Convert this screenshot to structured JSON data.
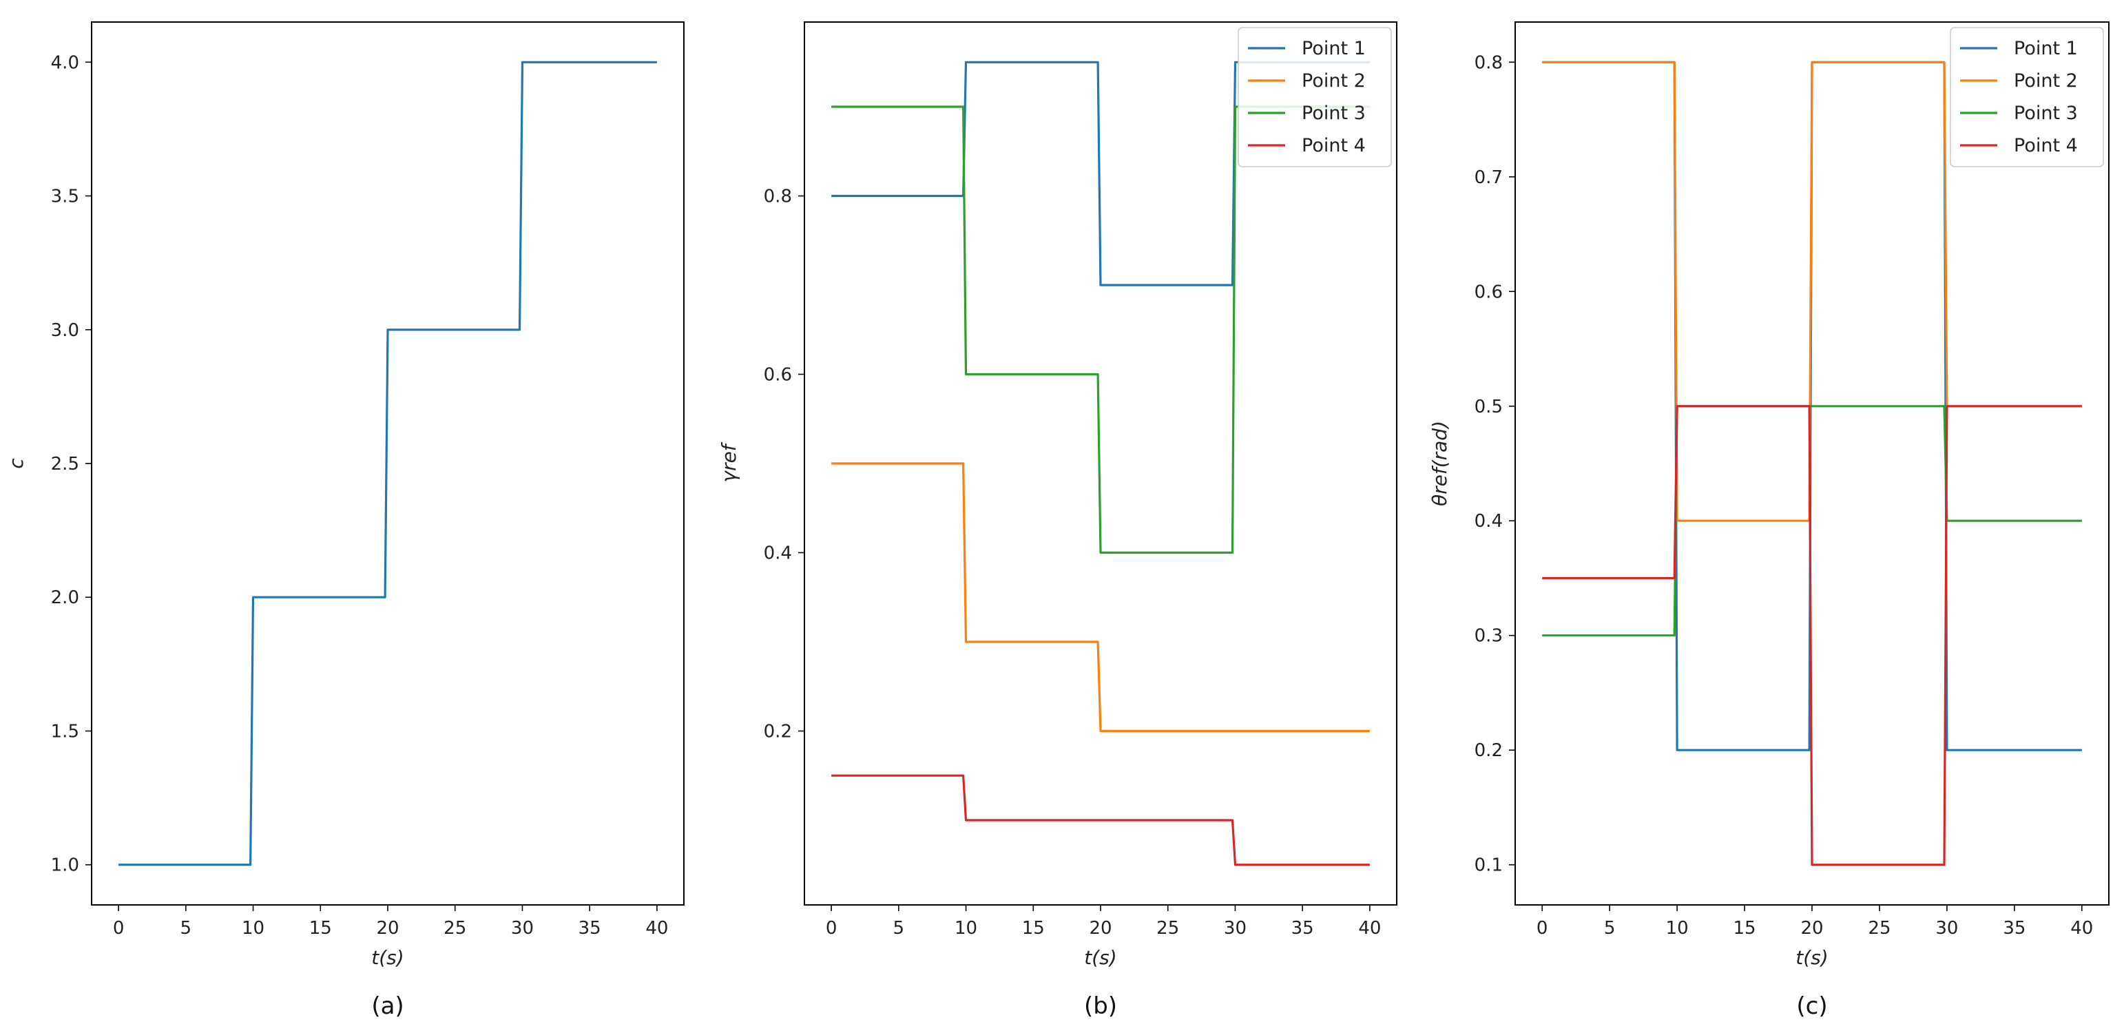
{
  "chart_data": [
    {
      "type": "line",
      "caption": "(a)",
      "xlabel": "t(s)",
      "ylabel": "c",
      "xlim": [
        -2,
        42
      ],
      "ylim": [
        0.85,
        4.15
      ],
      "xticks": [
        0,
        5,
        10,
        15,
        20,
        25,
        30,
        35,
        40
      ],
      "yticks": [
        1.0,
        1.5,
        2.0,
        2.5,
        3.0,
        3.5,
        4.0
      ],
      "ytick_labels": [
        "1.0",
        "1.5",
        "2.0",
        "2.5",
        "3.0",
        "3.5",
        "4.0"
      ],
      "legend": false,
      "series": [
        {
          "name": "c",
          "color": "#1f77b4",
          "x": [
            0,
            9.8,
            10,
            19.8,
            20,
            29.8,
            30,
            40
          ],
          "y": [
            1.0,
            1.0,
            2.0,
            2.0,
            3.0,
            3.0,
            4.0,
            4.0
          ]
        }
      ]
    },
    {
      "type": "line",
      "caption": "(b)",
      "xlabel": "t(s)",
      "ylabel": "γref",
      "xlim": [
        -2,
        42
      ],
      "ylim": [
        0.005,
        0.995
      ],
      "xticks": [
        0,
        5,
        10,
        15,
        20,
        25,
        30,
        35,
        40
      ],
      "yticks": [
        0.2,
        0.4,
        0.6,
        0.8
      ],
      "ytick_labels": [
        "0.2",
        "0.4",
        "0.6",
        "0.8"
      ],
      "legend": true,
      "legend_position": "top-right",
      "series": [
        {
          "name": "Point 1",
          "color": "#1f77b4",
          "x": [
            0,
            9.8,
            10,
            19.8,
            20,
            29.8,
            30,
            40
          ],
          "y": [
            0.8,
            0.8,
            0.95,
            0.95,
            0.7,
            0.7,
            0.95,
            0.95
          ]
        },
        {
          "name": "Point 2",
          "color": "#ff7f0e",
          "x": [
            0,
            9.8,
            10,
            19.8,
            20,
            29.8,
            30,
            40
          ],
          "y": [
            0.5,
            0.5,
            0.3,
            0.3,
            0.2,
            0.2,
            0.2,
            0.2
          ]
        },
        {
          "name": "Point 3",
          "color": "#2ca02c",
          "x": [
            0,
            9.8,
            10,
            19.8,
            20,
            29.8,
            30,
            40
          ],
          "y": [
            0.9,
            0.9,
            0.6,
            0.6,
            0.4,
            0.4,
            0.9,
            0.9
          ]
        },
        {
          "name": "Point 4",
          "color": "#d62728",
          "x": [
            0,
            9.8,
            10,
            19.8,
            20,
            29.8,
            30,
            40
          ],
          "y": [
            0.15,
            0.15,
            0.1,
            0.1,
            0.1,
            0.1,
            0.05,
            0.05
          ]
        }
      ]
    },
    {
      "type": "line",
      "caption": "(c)",
      "xlabel": "t(s)",
      "ylabel": "θref(rad)",
      "xlim": [
        -2,
        42
      ],
      "ylim": [
        0.065,
        0.835
      ],
      "xticks": [
        0,
        5,
        10,
        15,
        20,
        25,
        30,
        35,
        40
      ],
      "yticks": [
        0.1,
        0.2,
        0.3,
        0.4,
        0.5,
        0.6,
        0.7,
        0.8
      ],
      "ytick_labels": [
        "0.1",
        "0.2",
        "0.3",
        "0.4",
        "0.5",
        "0.6",
        "0.7",
        "0.8"
      ],
      "legend": true,
      "legend_position": "top-right",
      "series": [
        {
          "name": "Point 1",
          "color": "#1f77b4",
          "x": [
            0,
            9.8,
            10,
            19.8,
            20,
            29.8,
            30,
            40
          ],
          "y": [
            0.8,
            0.8,
            0.2,
            0.2,
            0.8,
            0.8,
            0.2,
            0.2
          ]
        },
        {
          "name": "Point 2",
          "color": "#ff7f0e",
          "x": [
            0,
            9.8,
            10,
            19.8,
            20,
            29.8,
            30,
            40
          ],
          "y": [
            0.8,
            0.8,
            0.4,
            0.4,
            0.8,
            0.8,
            0.5,
            0.5
          ]
        },
        {
          "name": "Point 3",
          "color": "#2ca02c",
          "x": [
            0,
            9.8,
            10,
            19.8,
            20,
            29.8,
            30,
            40
          ],
          "y": [
            0.3,
            0.3,
            0.5,
            0.5,
            0.5,
            0.5,
            0.4,
            0.4
          ]
        },
        {
          "name": "Point 4",
          "color": "#d62728",
          "x": [
            0,
            9.8,
            10,
            19.8,
            20,
            29.8,
            30,
            40
          ],
          "y": [
            0.35,
            0.35,
            0.5,
            0.5,
            0.1,
            0.1,
            0.5,
            0.5
          ]
        }
      ]
    }
  ]
}
